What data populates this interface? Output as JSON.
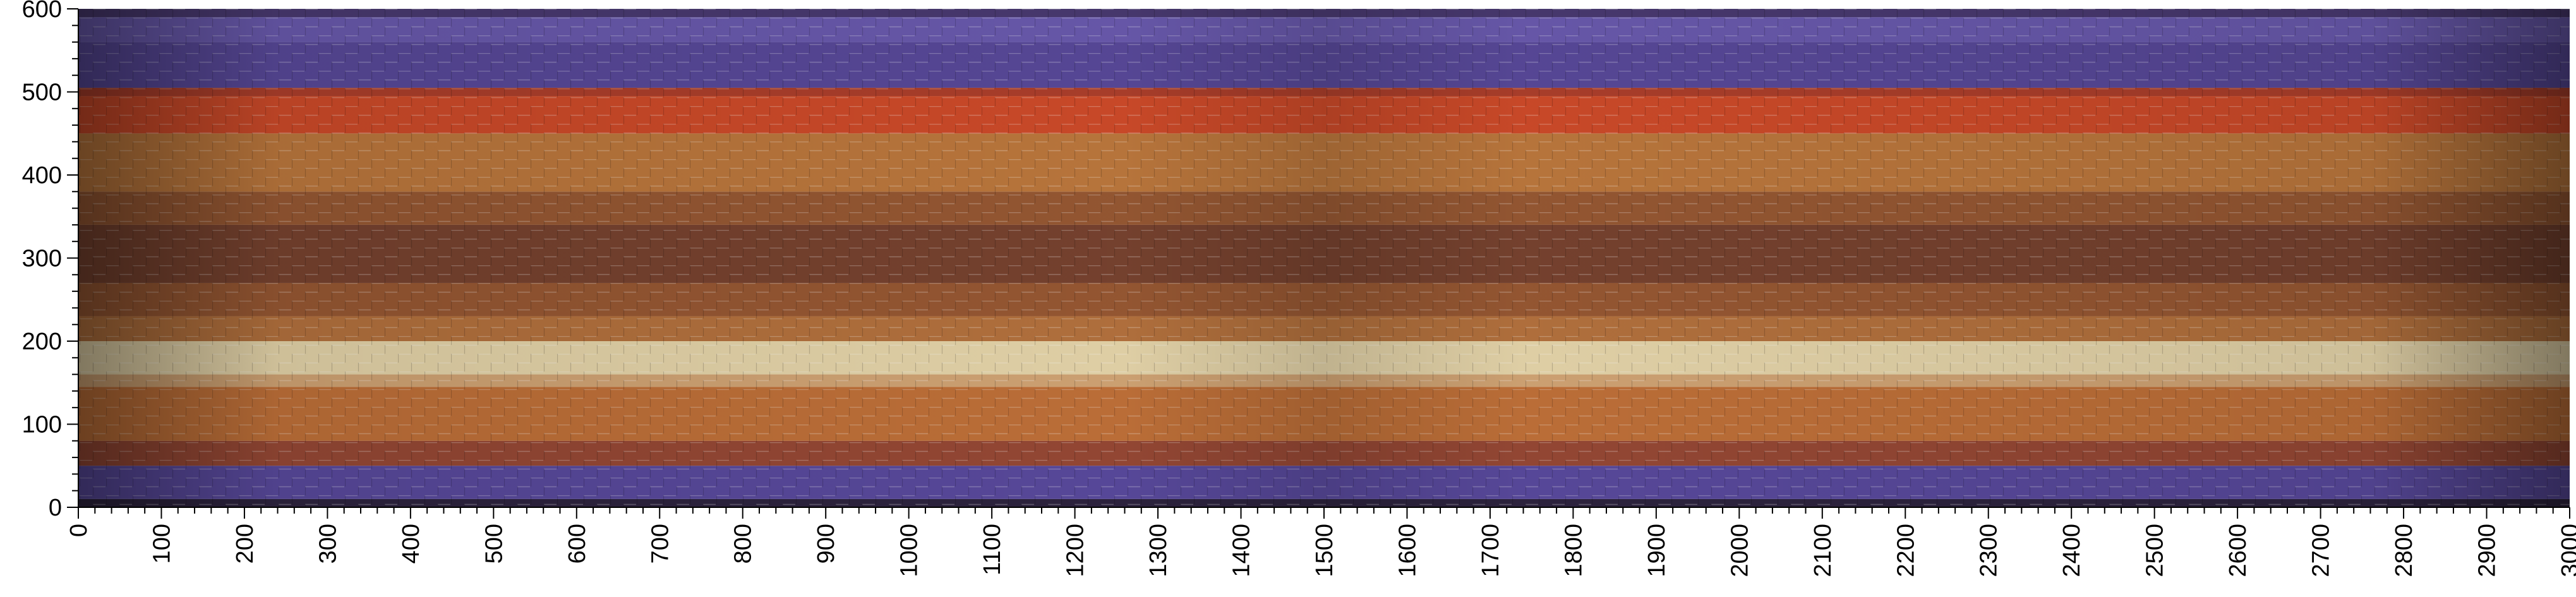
{
  "image": {
    "description_colors": {
      "purple": "#5a4a9e",
      "red": "#d8452a",
      "orange": "#c87437",
      "brown": "#8a4a2c",
      "cream": "#e8d6a8",
      "dark": "#2a1a22"
    }
  },
  "axes": {
    "x": {
      "range": [
        0,
        3000
      ],
      "major_step": 100,
      "minor_step": 20,
      "tick_labels": [
        "0",
        "100",
        "200",
        "300",
        "400",
        "500",
        "600",
        "700",
        "800",
        "900",
        "1000",
        "1100",
        "1200",
        "1300",
        "1400",
        "1500",
        "1600",
        "1700",
        "1800",
        "1900",
        "2000",
        "2100",
        "2200",
        "2300",
        "2400",
        "2500",
        "2600",
        "2700",
        "2800",
        "2900",
        "3000"
      ]
    },
    "y": {
      "range": [
        0,
        600
      ],
      "major_step": 100,
      "minor_step": 20,
      "tick_labels": [
        "0",
        "100",
        "200",
        "300",
        "400",
        "500",
        "600"
      ]
    }
  },
  "bands": [
    {
      "from": 0,
      "to": 10,
      "color": "#2e2440"
    },
    {
      "from": 10,
      "to": 50,
      "color": "#5b4ba0"
    },
    {
      "from": 50,
      "to": 80,
      "color": "#9a4a36"
    },
    {
      "from": 80,
      "to": 145,
      "color": "#c4733a"
    },
    {
      "from": 145,
      "to": 160,
      "color": "#d6a877"
    },
    {
      "from": 160,
      "to": 200,
      "color": "#ead9ad"
    },
    {
      "from": 200,
      "to": 230,
      "color": "#b8743f"
    },
    {
      "from": 230,
      "to": 270,
      "color": "#9b5a34"
    },
    {
      "from": 270,
      "to": 340,
      "color": "#7a4430"
    },
    {
      "from": 340,
      "to": 380,
      "color": "#9a5a34"
    },
    {
      "from": 380,
      "to": 450,
      "color": "#c07a3e"
    },
    {
      "from": 450,
      "to": 495,
      "color": "#d24c2a"
    },
    {
      "from": 495,
      "to": 505,
      "color": "#b0402c"
    },
    {
      "from": 505,
      "to": 560,
      "color": "#5a4a9c"
    },
    {
      "from": 560,
      "to": 590,
      "color": "#6b5bb0"
    },
    {
      "from": 590,
      "to": 600,
      "color": "#4a3a72"
    }
  ]
}
